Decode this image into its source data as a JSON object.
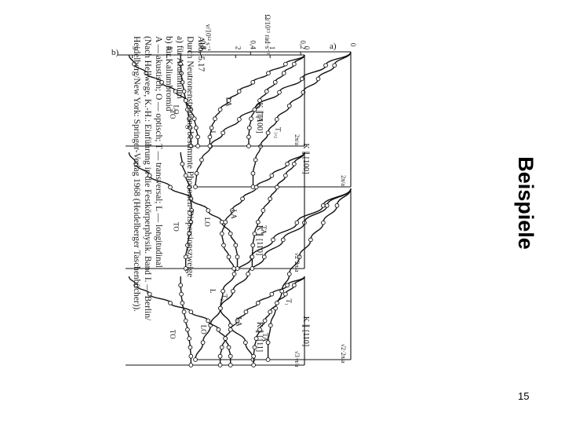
{
  "slide": {
    "title": "Beispiele",
    "page_number": "15"
  },
  "caption": {
    "figure_label": "Abb. 5.17",
    "lines": [
      "Durch Neutronenstreuung bestimmte Phononen-Dispersionszweige",
      "a) für Aluminium",
      "b) für Kaliumbromid",
      "A — akustisch; O — optisch; T — transversal; L — longitudinal",
      "(Nach Hellwege, K.-H.: Einführung in die Festkörperphysik. Band I. — Berlin/",
      "Heidelberg/New York: Springer-Verlag 1968 (Heidelberger Taschenbücher))."
    ]
  },
  "chart_data": [
    {
      "panel": "a",
      "type": "line",
      "ylabel": "Ω/10¹³ rad·s⁻¹",
      "yticks": [
        "0",
        "0,2",
        "0,4",
        "0,6"
      ],
      "charts": [
        {
          "xlabel": "K ∥ [100]",
          "x_end_label": "2π/a",
          "x": [
            0,
            0.1,
            0.2,
            0.3,
            0.4,
            0.5,
            0.6,
            0.7,
            0.8,
            0.9,
            1.0
          ],
          "series": [
            {
              "name": "L",
              "values": [
                0,
                0.1,
                0.195,
                0.285,
                0.37,
                0.445,
                0.51,
                0.56,
                0.595,
                0.615,
                0.62
              ]
            },
            {
              "name": "T₁,₂",
              "values": [
                0,
                0.065,
                0.13,
                0.19,
                0.245,
                0.295,
                0.33,
                0.36,
                0.38,
                0.39,
                0.39
              ]
            }
          ]
        },
        {
          "xlabel": "K ∥ [110]",
          "x_end_label": "√2·2π/a",
          "x": [
            0,
            0.1,
            0.2,
            0.3,
            0.4,
            0.5,
            0.6,
            0.7,
            0.8,
            0.9,
            1.0
          ],
          "series": [
            {
              "name": "L",
              "values": [
                0,
                0.11,
                0.215,
                0.31,
                0.395,
                0.465,
                0.51,
                0.52,
                0.48,
                0.42,
                0.39
              ]
            },
            {
              "name": "T₁",
              "values": [
                0,
                0.055,
                0.11,
                0.16,
                0.205,
                0.245,
                0.275,
                0.3,
                0.32,
                0.33,
                0.33
              ]
            },
            {
              "name": "T₂",
              "values": [
                0,
                0.095,
                0.185,
                0.27,
                0.345,
                0.41,
                0.47,
                0.52,
                0.56,
                0.59,
                0.62
              ]
            }
          ]
        }
      ]
    },
    {
      "panel": "b",
      "type": "line",
      "ylabel": "ν/10¹² s⁻¹",
      "yticks": [
        "0",
        "1",
        "2",
        "3",
        "4",
        "5"
      ],
      "charts": [
        {
          "xlabel": "K ∥ [100]",
          "x_end_label": "2π/a",
          "x": [
            0,
            0.1,
            0.2,
            0.3,
            0.4,
            0.5,
            0.6,
            0.7,
            0.8,
            0.9,
            1.0
          ],
          "series": [
            {
              "name": "LO",
              "values": [
                5.1,
                4.95,
                4.6,
                4.15,
                3.75,
                3.45,
                3.3,
                3.2,
                3.15,
                3.1,
                3.1
              ]
            },
            {
              "name": "TO",
              "values": [
                3.6,
                3.6,
                3.58,
                3.55,
                3.5,
                3.45,
                3.4,
                3.35,
                3.32,
                3.3,
                3.3
              ]
            },
            {
              "name": "LA",
              "values": [
                0,
                0.55,
                1.05,
                1.5,
                1.9,
                2.2,
                2.45,
                2.6,
                2.7,
                2.75,
                2.75
              ]
            },
            {
              "name": "TA",
              "values": [
                0,
                0.3,
                0.6,
                0.85,
                1.1,
                1.3,
                1.45,
                1.55,
                1.6,
                1.62,
                1.62
              ]
            }
          ]
        },
        {
          "xlabel": "K ∥ [110]",
          "x_end_label": "√2·2π/a",
          "x": [
            0,
            0.1,
            0.2,
            0.3,
            0.4,
            0.5,
            0.6,
            0.7,
            0.8,
            0.9,
            1.0
          ],
          "series": [
            {
              "name": "LO",
              "values": [
                5.1,
                4.9,
                4.5,
                3.9,
                3.3,
                2.8,
                2.4,
                2.15,
                2.0,
                1.95,
                1.95
              ]
            },
            {
              "name": "TO",
              "values": [
                3.6,
                3.55,
                3.45,
                3.35,
                3.3,
                3.28,
                3.3,
                3.35,
                3.4,
                3.45,
                3.45
              ]
            },
            {
              "name": "LA",
              "values": [
                0,
                0.5,
                0.95,
                1.4,
                1.8,
                2.1,
                2.3,
                2.4,
                2.35,
                2.2,
                2.05
              ]
            },
            {
              "name": "TA",
              "values": [
                0,
                0.3,
                0.55,
                0.8,
                1.0,
                1.2,
                1.35,
                1.45,
                1.5,
                1.52,
                1.52
              ]
            }
          ]
        },
        {
          "xlabel": "K ∥ [111]",
          "x_end_label": "√3·π/a",
          "x": [
            0,
            0.1,
            0.2,
            0.3,
            0.4,
            0.5,
            0.6,
            0.7,
            0.8,
            0.9,
            1.0
          ],
          "series": [
            {
              "name": "LO",
              "values": [
                5.1,
                4.9,
                4.5,
                3.9,
                3.3,
                2.8,
                2.5,
                2.3,
                2.2,
                2.15,
                2.15
              ]
            },
            {
              "name": "TO",
              "values": [
                3.6,
                3.6,
                3.58,
                3.55,
                3.5,
                3.45,
                3.4,
                3.35,
                3.32,
                3.3,
                3.3
              ]
            },
            {
              "name": "LA",
              "values": [
                0,
                0.5,
                0.95,
                1.35,
                1.7,
                1.95,
                2.15,
                2.3,
                2.4,
                2.45,
                2.45
              ]
            },
            {
              "name": "TA",
              "values": [
                0,
                0.3,
                0.55,
                0.8,
                1.0,
                1.15,
                1.3,
                1.4,
                1.45,
                1.48,
                1.48
              ]
            }
          ]
        }
      ]
    }
  ]
}
